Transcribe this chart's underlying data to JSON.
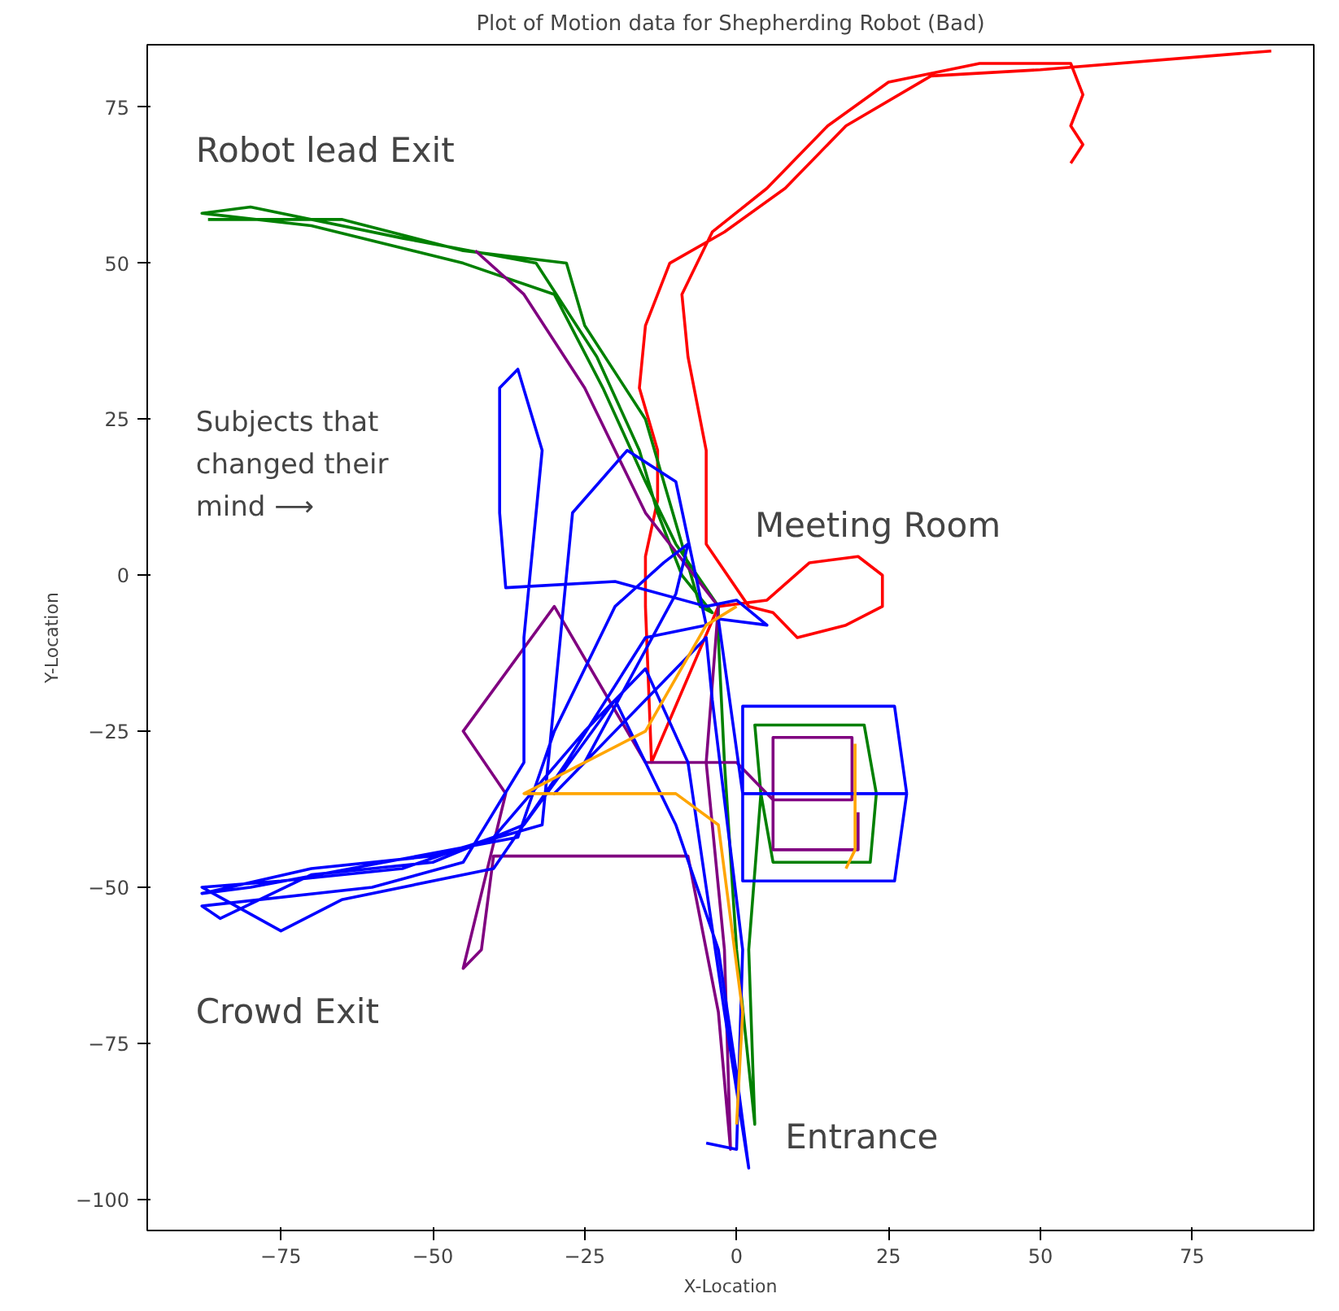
{
  "chart_data": {
    "type": "line",
    "title": "Plot of Motion data for Shepherding Robot (Bad)",
    "xlabel": "X-Location",
    "ylabel": "Y-Location",
    "xlim": [
      -97,
      95
    ],
    "ylim": [
      -105,
      85
    ],
    "xticks": [
      -75,
      -50,
      -25,
      0,
      25,
      50,
      75
    ],
    "yticks": [
      -100,
      -75,
      -50,
      -25,
      0,
      25,
      50,
      75
    ],
    "grid": false,
    "annotations": [
      "Robot lead Exit",
      "Subjects that\nchanged their\nmind  ⟶",
      "Meeting Room",
      "Crowd Exit",
      "Entrance"
    ],
    "series": [
      {
        "color": "#ff0000",
        "x": [
          88,
          50,
          32,
          18,
          8,
          -2,
          -11,
          -15,
          -16,
          -13,
          -13,
          -15,
          -15,
          -14,
          -3,
          5,
          12,
          20,
          24,
          24,
          18,
          10,
          6,
          2,
          -5,
          -5,
          -8,
          -9,
          -4,
          5,
          15,
          25,
          40,
          55,
          57,
          55,
          57,
          55
        ],
        "values": [
          84,
          81,
          80,
          72,
          62,
          55,
          50,
          40,
          30,
          20,
          12,
          3,
          -5,
          -30,
          -5,
          -4,
          2,
          3,
          0,
          -5,
          -8,
          -10,
          -6,
          -5,
          5,
          20,
          35,
          45,
          55,
          62,
          72,
          79,
          82,
          82,
          77,
          72,
          69,
          66
        ]
      },
      {
        "color": "#008000",
        "x": [
          4,
          3,
          21,
          23,
          22,
          6,
          4,
          2,
          3,
          0,
          -2,
          -3,
          -3,
          -10,
          -15,
          -22,
          -30,
          -45,
          -70,
          -88,
          -80,
          -55,
          -33,
          -23,
          -16,
          -13,
          -9,
          -4,
          -6,
          -12,
          -15,
          -25,
          -28,
          -45,
          -65,
          -87
        ],
        "values": [
          -35,
          -24,
          -24,
          -35,
          -46,
          -46,
          -35,
          -60,
          -88,
          -60,
          -30,
          -10,
          -5,
          5,
          15,
          30,
          45,
          50,
          56,
          58,
          59,
          54,
          50,
          35,
          20,
          10,
          0,
          -6,
          -5,
          15,
          25,
          40,
          50,
          52,
          57,
          57
        ]
      },
      {
        "color": "#800080",
        "x": [
          -43,
          -35,
          -25,
          -15,
          -3,
          -5,
          -2,
          -1,
          -3,
          -8,
          -40,
          -42,
          -45,
          -43,
          -38,
          -45,
          -30,
          -15,
          0,
          6,
          19,
          19,
          6,
          6,
          20,
          20
        ],
        "values": [
          52,
          45,
          30,
          10,
          -5,
          -30,
          -60,
          -92,
          -70,
          -45,
          -45,
          -60,
          -63,
          -55,
          -35,
          -25,
          -5,
          -30,
          -30,
          -36,
          -36,
          -26,
          -26,
          -44,
          -44,
          -38
        ]
      },
      {
        "color": "#0000ff",
        "x": [
          28,
          26,
          1,
          1,
          1,
          26,
          28,
          1,
          -3,
          5,
          0,
          -5,
          -20,
          -38,
          -39,
          -39,
          -36,
          -32,
          -35,
          -35,
          -45,
          -60,
          -88,
          -85,
          -70,
          -50,
          -35,
          -20,
          -10,
          -3,
          0,
          2,
          -2,
          -5,
          -8,
          -15,
          -25,
          -40,
          -55,
          -75,
          -88,
          -75,
          -65,
          -40,
          -28,
          -15,
          -5,
          -10,
          -18,
          -27,
          -30,
          -32,
          -50,
          -70,
          -88,
          -80,
          -36,
          -30,
          -20,
          -12,
          -8,
          -10,
          -25,
          -30,
          -15,
          -5,
          -4,
          1,
          0,
          -5
        ],
        "values": [
          -35,
          -21,
          -21,
          -35,
          -49,
          -49,
          -35,
          -35,
          -7,
          -8,
          -4,
          -5,
          -1,
          -2,
          10,
          30,
          33,
          20,
          -10,
          -30,
          -46,
          -50,
          -53,
          -55,
          -48,
          -46,
          -40,
          -20,
          -40,
          -60,
          -80,
          -95,
          -70,
          -50,
          -30,
          -15,
          -25,
          -42,
          -47,
          -49,
          -50,
          -57,
          -52,
          -47,
          -30,
          -10,
          -8,
          15,
          20,
          10,
          -20,
          -40,
          -45,
          -47,
          -51,
          -50,
          -42,
          -25,
          -5,
          2,
          5,
          -3,
          -30,
          -35,
          -20,
          -10,
          -20,
          -60,
          -92,
          -91
        ]
      },
      {
        "color": "#ffa500",
        "x": [
          0,
          1,
          -3,
          -10,
          -25,
          -35,
          -15,
          -5,
          0
        ],
        "values": [
          -88,
          -70,
          -40,
          -35,
          -35,
          -35,
          -25,
          -8,
          -5
        ]
      },
      {
        "color": "#ffa500",
        "x": [
          18,
          19.5,
          19.5
        ],
        "values": [
          -47,
          -44,
          -27
        ]
      }
    ]
  }
}
